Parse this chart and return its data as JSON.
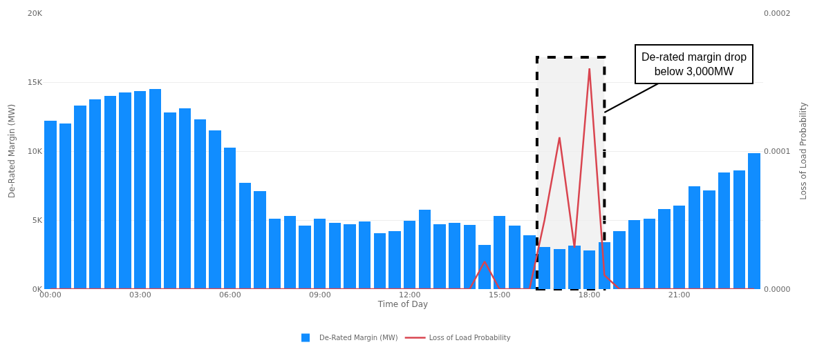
{
  "chart_data": {
    "type": "bar",
    "xlabel": "Time of Day",
    "ylabel": "De-Rated Margin (MW)",
    "y2label": "Loss of Load Probability",
    "x": [
      0,
      0.5,
      1,
      1.5,
      2,
      2.5,
      3,
      3.5,
      4,
      4.5,
      5,
      5.5,
      6,
      6.5,
      7,
      7.5,
      8,
      8.5,
      9,
      9.5,
      10,
      10.5,
      11,
      11.5,
      12,
      12.5,
      13,
      13.5,
      14,
      14.5,
      15,
      15.5,
      16,
      16.5,
      17,
      17.5,
      18,
      18.5,
      19,
      19.5,
      20,
      20.5,
      21,
      21.5,
      22,
      22.5,
      23,
      23.5
    ],
    "series": [
      {
        "name": "De-Rated Margin (MW)",
        "color": "#118dff",
        "values": [
          12.2,
          12.0,
          13.3,
          13.75,
          14.0,
          14.25,
          14.35,
          14.5,
          12.8,
          13.1,
          12.3,
          11.5,
          10.25,
          7.7,
          7.1,
          5.1,
          5.3,
          4.6,
          5.1,
          4.8,
          4.7,
          4.9,
          4.05,
          4.2,
          4.95,
          5.75,
          4.7,
          4.8,
          4.65,
          3.2,
          5.3,
          4.6,
          3.9,
          3.05,
          2.9,
          3.15,
          2.8,
          3.4,
          4.2,
          5.0,
          5.1,
          5.8,
          6.05,
          7.45,
          7.15,
          8.45,
          8.6,
          9.85
        ]
      },
      {
        "name": "Loss of Load Probability",
        "type": "line",
        "axis": "y2",
        "color": "#d9444f",
        "values": [
          0,
          0,
          0,
          0,
          0,
          0,
          0,
          0,
          0,
          0,
          0,
          0,
          0,
          0,
          0,
          0,
          0,
          0,
          0,
          0,
          0,
          0,
          0,
          0,
          0,
          0,
          0,
          0,
          0,
          2e-05,
          0,
          0,
          0,
          5e-05,
          0.00011,
          3e-05,
          0.00016,
          1e-05,
          0,
          0,
          0,
          0,
          0,
          0,
          0,
          0,
          0,
          0
        ]
      }
    ],
    "xlim": [
      -0.25,
      23.8
    ],
    "xticks": [
      {
        "value": 0,
        "label": "00:00"
      },
      {
        "value": 3,
        "label": "03:00"
      },
      {
        "value": 6,
        "label": "06:00"
      },
      {
        "value": 9,
        "label": "09:00"
      },
      {
        "value": 12,
        "label": "12:00"
      },
      {
        "value": 15,
        "label": "15:00"
      },
      {
        "value": 18,
        "label": "18:00"
      },
      {
        "value": 21,
        "label": "21:00"
      }
    ],
    "ylim": [
      0,
      20
    ],
    "yticks": [
      {
        "value": 0,
        "label": "0K"
      },
      {
        "value": 5,
        "label": "5K"
      },
      {
        "value": 10,
        "label": "10K"
      },
      {
        "value": 15,
        "label": "15K"
      },
      {
        "value": 20,
        "label": "20K"
      }
    ],
    "y2lim": [
      0,
      0.0002
    ],
    "y2ticks": [
      {
        "value": 0,
        "label": "0.0000"
      },
      {
        "value": 0.0001,
        "label": "0.0001"
      },
      {
        "value": 0.0002,
        "label": "0.0002"
      }
    ],
    "bands": [
      {
        "axis": "x",
        "from": 16.25,
        "to": 18.5,
        "label": "De-rated margin drop below 3,000MW",
        "color": "#000000"
      }
    ],
    "grid": "y",
    "legend": "bottom"
  }
}
